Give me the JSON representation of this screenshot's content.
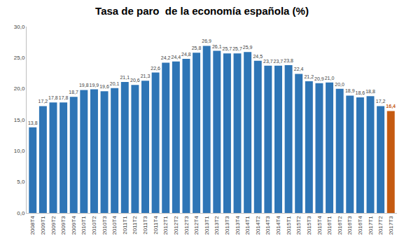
{
  "chart_data": {
    "type": "bar",
    "title": "Tasa de paro  de la economía española (%)",
    "categories": [
      "2008T4",
      "2009T1",
      "2009T2",
      "2009T3",
      "2009T4",
      "2010T1",
      "2010T2",
      "2010T3",
      "2010T4",
      "2011T1",
      "2011T2",
      "2011T3",
      "2011T4",
      "2012T1",
      "2012T2",
      "2012T3",
      "2012T4",
      "2013T1",
      "2013T2",
      "2013T3",
      "2013T4",
      "2014T1",
      "2014T2",
      "2014T3",
      "2014T4",
      "2015T1",
      "2015T2",
      "2015T3",
      "2015T4",
      "2016T1",
      "2016T2",
      "2016T3",
      "2016T4",
      "2017T1",
      "2017T2",
      "2017T3"
    ],
    "values": [
      13.8,
      17.2,
      17.8,
      17.8,
      18.7,
      19.8,
      19.9,
      19.6,
      20.1,
      21.1,
      20.6,
      21.3,
      22.6,
      24.2,
      24.4,
      24.8,
      25.8,
      26.9,
      26.1,
      25.7,
      25.7,
      25.9,
      24.5,
      23.7,
      23.7,
      23.8,
      22.4,
      21.2,
      20.9,
      21.0,
      20.0,
      18.9,
      18.6,
      18.8,
      17.2,
      16.4
    ],
    "value_labels": [
      "13,8",
      "17,2",
      "17,8",
      "17,8",
      "18,7",
      "19,8",
      "19,9",
      "19,6",
      "20,1",
      "21,1",
      "20,6",
      "21,3",
      "22,6",
      "24,2",
      "24,4",
      "24,8",
      "25,8",
      "26,9",
      "26,1",
      "25,7",
      "25,7",
      "25,9",
      "24,5",
      "23,7",
      "23,7",
      "23,8",
      "22,4",
      "21,2",
      "20,9",
      "21,0",
      "20,0",
      "18,9",
      "18,6",
      "18,8",
      "17,2",
      "16,4"
    ],
    "color": "#2e75b6",
    "colors": [
      "#2e75b6",
      "#2e75b6",
      "#2e75b6",
      "#2e75b6",
      "#2e75b6",
      "#2e75b6",
      "#2e75b6",
      "#2e75b6",
      "#2e75b6",
      "#2e75b6",
      "#2e75b6",
      "#2e75b6",
      "#2e75b6",
      "#2e75b6",
      "#2e75b6",
      "#2e75b6",
      "#2e75b6",
      "#2e75b6",
      "#2e75b6",
      "#2e75b6",
      "#2e75b6",
      "#2e75b6",
      "#2e75b6",
      "#2e75b6",
      "#2e75b6",
      "#2e75b6",
      "#2e75b6",
      "#2e75b6",
      "#2e75b6",
      "#2e75b6",
      "#2e75b6",
      "#2e75b6",
      "#2e75b6",
      "#2e75b6",
      "#2e75b6",
      "#c55a11"
    ],
    "ylim": [
      0,
      30
    ],
    "yticks": [
      {
        "value": 0,
        "label": "0,0"
      },
      {
        "value": 5,
        "label": "5,0"
      },
      {
        "value": 10,
        "label": "10,0"
      },
      {
        "value": 15,
        "label": "15,0"
      },
      {
        "value": 20,
        "label": "20,0"
      },
      {
        "value": 25,
        "label": "25,0"
      },
      {
        "value": 30,
        "label": "30,0"
      }
    ],
    "grid": false,
    "data_labels": true
  }
}
